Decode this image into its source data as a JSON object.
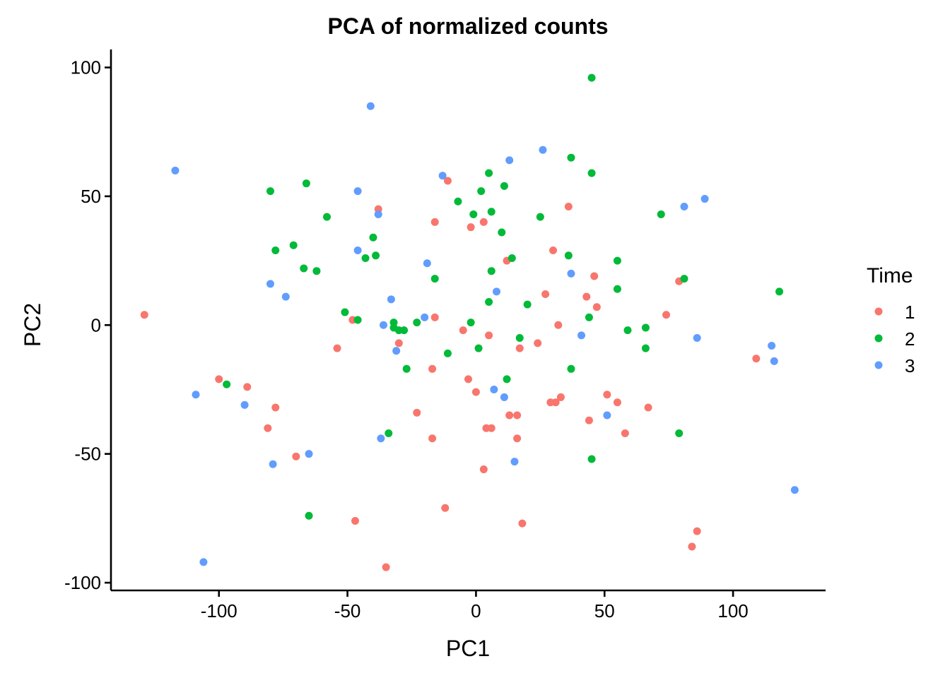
{
  "chart_data": {
    "type": "scatter",
    "title": "PCA of normalized counts",
    "xlabel": "PC1",
    "ylabel": "PC2",
    "xlim": [
      -142,
      136
    ],
    "ylim": [
      -103,
      107
    ],
    "xticks": [
      -100,
      -50,
      0,
      50,
      100
    ],
    "yticks": [
      -100,
      -50,
      0,
      50,
      100
    ],
    "x_tick_labels": [
      "-100",
      "-50",
      "0",
      "50",
      "100"
    ],
    "y_tick_labels": [
      "-100",
      "-50",
      "0",
      "50",
      "100"
    ],
    "grid": false,
    "legend_position": "right",
    "legend_title": "Time",
    "series": [
      {
        "name": "1",
        "color": "#F8766D",
        "points": [
          [
            -129,
            4
          ],
          [
            -100,
            -21
          ],
          [
            -89,
            -24
          ],
          [
            -78,
            -32
          ],
          [
            -81,
            -40
          ],
          [
            -70,
            -51
          ],
          [
            -54,
            -9
          ],
          [
            -48,
            2
          ],
          [
            -47,
            -76
          ],
          [
            -38,
            45
          ],
          [
            -35,
            -94
          ],
          [
            -30,
            -7
          ],
          [
            -23,
            -34
          ],
          [
            -17,
            -17
          ],
          [
            -17,
            -44
          ],
          [
            -16,
            40
          ],
          [
            -16,
            3
          ],
          [
            -12,
            -71
          ],
          [
            -11,
            56
          ],
          [
            -5,
            -2
          ],
          [
            -2,
            38
          ],
          [
            -3,
            -21
          ],
          [
            0,
            -26
          ],
          [
            3,
            40
          ],
          [
            3,
            -56
          ],
          [
            4,
            -40
          ],
          [
            5,
            -4
          ],
          [
            6,
            -40
          ],
          [
            12,
            25
          ],
          [
            13,
            -35
          ],
          [
            16,
            -35
          ],
          [
            16,
            -44
          ],
          [
            17,
            -9
          ],
          [
            18,
            -77
          ],
          [
            24,
            -7
          ],
          [
            27,
            12
          ],
          [
            30,
            29
          ],
          [
            29,
            -30
          ],
          [
            31,
            -30
          ],
          [
            32,
            0
          ],
          [
            33,
            -28
          ],
          [
            36,
            46
          ],
          [
            43,
            11
          ],
          [
            44,
            -37
          ],
          [
            46,
            19
          ],
          [
            47,
            7
          ],
          [
            51,
            -27
          ],
          [
            55,
            -30
          ],
          [
            58,
            -42
          ],
          [
            67,
            -32
          ],
          [
            74,
            4
          ],
          [
            79,
            17
          ],
          [
            84,
            -86
          ],
          [
            86,
            -80
          ],
          [
            109,
            -13
          ]
        ]
      },
      {
        "name": "2",
        "color": "#00BA38",
        "points": [
          [
            -97,
            -23
          ],
          [
            -80,
            52
          ],
          [
            -78,
            29
          ],
          [
            -71,
            31
          ],
          [
            -67,
            22
          ],
          [
            -66,
            55
          ],
          [
            -65,
            -74
          ],
          [
            -62,
            21
          ],
          [
            -58,
            42
          ],
          [
            -51,
            5
          ],
          [
            -46,
            2
          ],
          [
            -43,
            26
          ],
          [
            -40,
            34
          ],
          [
            -39,
            27
          ],
          [
            -34,
            -42
          ],
          [
            -32,
            1
          ],
          [
            -32,
            -1
          ],
          [
            -30,
            -2
          ],
          [
            -28,
            -2
          ],
          [
            -27,
            -17
          ],
          [
            -23,
            1
          ],
          [
            -16,
            18
          ],
          [
            -11,
            -11
          ],
          [
            -7,
            48
          ],
          [
            -2,
            1
          ],
          [
            -1,
            43
          ],
          [
            1,
            -9
          ],
          [
            2,
            52
          ],
          [
            5,
            59
          ],
          [
            5,
            9
          ],
          [
            6,
            21
          ],
          [
            6,
            44
          ],
          [
            10,
            36
          ],
          [
            11,
            54
          ],
          [
            12,
            -21
          ],
          [
            14,
            26
          ],
          [
            17,
            -5
          ],
          [
            20,
            8
          ],
          [
            25,
            42
          ],
          [
            36,
            27
          ],
          [
            37,
            65
          ],
          [
            37,
            -17
          ],
          [
            44,
            3
          ],
          [
            45,
            59
          ],
          [
            45,
            96
          ],
          [
            45,
            -52
          ],
          [
            55,
            25
          ],
          [
            55,
            14
          ],
          [
            59,
            -2
          ],
          [
            66,
            -1
          ],
          [
            66,
            -9
          ],
          [
            72,
            43
          ],
          [
            79,
            -42
          ],
          [
            81,
            18
          ],
          [
            118,
            13
          ]
        ]
      },
      {
        "name": "3",
        "color": "#619CFF",
        "points": [
          [
            -117,
            60
          ],
          [
            -109,
            -27
          ],
          [
            -106,
            -92
          ],
          [
            -90,
            -31
          ],
          [
            -80,
            16
          ],
          [
            -79,
            -54
          ],
          [
            -74,
            11
          ],
          [
            -65,
            -50
          ],
          [
            -46,
            52
          ],
          [
            -46,
            29
          ],
          [
            -41,
            85
          ],
          [
            -38,
            43
          ],
          [
            -37,
            -44
          ],
          [
            -36,
            0
          ],
          [
            -33,
            10
          ],
          [
            -31,
            -10
          ],
          [
            -20,
            3
          ],
          [
            -19,
            24
          ],
          [
            -13,
            58
          ],
          [
            7,
            -25
          ],
          [
            8,
            13
          ],
          [
            11,
            -28
          ],
          [
            13,
            64
          ],
          [
            15,
            -53
          ],
          [
            26,
            68
          ],
          [
            37,
            20
          ],
          [
            41,
            -4
          ],
          [
            51,
            -35
          ],
          [
            81,
            46
          ],
          [
            86,
            -5
          ],
          [
            89,
            49
          ],
          [
            115,
            -8
          ],
          [
            116,
            -14
          ],
          [
            124,
            -64
          ]
        ]
      }
    ]
  }
}
